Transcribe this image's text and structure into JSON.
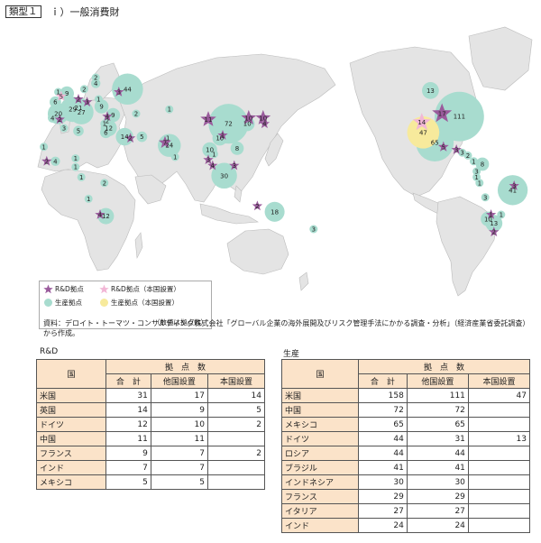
{
  "header": {
    "type_label": "類型１",
    "title": "ｉ）一般消費財"
  },
  "colors": {
    "rd": "#9a5b9c",
    "rd_home": "#f2b6d6",
    "production": "#a8dccf",
    "production_home": "#f7ea9c",
    "land": "#e4e4e4",
    "header_fill": "#fbe3c9"
  },
  "map_markers": [
    {
      "kind": "rd",
      "label": "17",
      "lon": -98,
      "lat": 40
    },
    {
      "kind": "rd_home",
      "label": "14",
      "lon": -112,
      "lat": 34
    },
    {
      "kind": "prod",
      "label": "111",
      "lon": -86,
      "lat": 38
    },
    {
      "kind": "prod_home",
      "label": "47",
      "lon": -111,
      "lat": 27
    },
    {
      "kind": "prod",
      "label": "13",
      "lon": -106,
      "lat": 56
    },
    {
      "kind": "prod",
      "label": "65",
      "lon": -103,
      "lat": 20
    },
    {
      "kind": "rd",
      "label": "5",
      "lon": -97,
      "lat": 17
    },
    {
      "kind": "rd",
      "label": "3",
      "lon": -88,
      "lat": 15
    },
    {
      "kind": "prod",
      "label": "3",
      "lon": -84,
      "lat": 13
    },
    {
      "kind": "prod",
      "label": "2",
      "lon": -80,
      "lat": 11
    },
    {
      "kind": "prod",
      "label": "1",
      "lon": -76,
      "lat": 7
    },
    {
      "kind": "prod",
      "label": "8",
      "lon": -70,
      "lat": 5
    },
    {
      "kind": "prod",
      "label": "3",
      "lon": -74,
      "lat": 0
    },
    {
      "kind": "prod",
      "label": "1",
      "lon": -74,
      "lat": -4
    },
    {
      "kind": "prod",
      "label": "1",
      "lon": -72,
      "lat": -8
    },
    {
      "kind": "prod",
      "label": "3",
      "lon": -68,
      "lat": -18
    },
    {
      "kind": "rd",
      "label": "3",
      "lon": -48,
      "lat": -10
    },
    {
      "kind": "prod",
      "label": "41",
      "lon": -49,
      "lat": -13
    },
    {
      "kind": "rd",
      "label": "1",
      "lon": -64,
      "lat": -30
    },
    {
      "kind": "prod",
      "label": "10",
      "lon": -66,
      "lat": -33
    },
    {
      "kind": "prod",
      "label": "13",
      "lon": -62,
      "lat": -36
    },
    {
      "kind": "prod",
      "label": "1",
      "lon": -57,
      "lat": -30
    },
    {
      "kind": "rd",
      "label": "2",
      "lon": -62,
      "lat": -42
    },
    {
      "kind": "prod",
      "label": "1",
      "lon": -4,
      "lat": 55
    },
    {
      "kind": "rd_home",
      "label": "5",
      "lon": -2,
      "lat": 52
    },
    {
      "kind": "prod",
      "label": "6",
      "lon": -6,
      "lat": 48
    },
    {
      "kind": "prod",
      "label": "9",
      "lon": 2,
      "lat": 54
    },
    {
      "kind": "rd",
      "label": "2",
      "lon": 10,
      "lat": 50
    },
    {
      "kind": "rd",
      "label": "3",
      "lon": 16,
      "lat": 48
    },
    {
      "kind": "prod",
      "label": "2",
      "lon": 14,
      "lat": 57
    },
    {
      "kind": "prod",
      "label": "4",
      "lon": 22,
      "lat": 61
    },
    {
      "kind": "prod",
      "label": "2",
      "lon": 22,
      "lat": 65
    },
    {
      "kind": "prod",
      "label": "44",
      "lon": 44,
      "lat": 57
    },
    {
      "kind": "rd",
      "label": "3",
      "lon": 38,
      "lat": 55
    },
    {
      "kind": "prod",
      "label": "1",
      "lon": 24,
      "lat": 50
    },
    {
      "kind": "prod",
      "label": "9",
      "lon": 26,
      "lat": 45
    },
    {
      "kind": "prod",
      "label": "21",
      "lon": 10,
      "lat": 44
    },
    {
      "kind": "prod",
      "label": "29",
      "lon": 6,
      "lat": 43
    },
    {
      "kind": "prod",
      "label": "20",
      "lon": -4,
      "lat": 40
    },
    {
      "kind": "prod",
      "label": "27",
      "lon": 12,
      "lat": 41
    },
    {
      "kind": "prod",
      "label": "4",
      "lon": -8,
      "lat": 37
    },
    {
      "kind": "rd",
      "label": "2",
      "lon": -3,
      "lat": 36
    },
    {
      "kind": "prod",
      "label": "3",
      "lon": 0,
      "lat": 30
    },
    {
      "kind": "prod",
      "label": "5",
      "lon": 10,
      "lat": 28
    },
    {
      "kind": "prod",
      "label": "1",
      "lon": -14,
      "lat": 17
    },
    {
      "kind": "rd",
      "label": "2",
      "lon": -12,
      "lat": 7
    },
    {
      "kind": "prod",
      "label": "4",
      "lon": -6,
      "lat": 7
    },
    {
      "kind": "prod",
      "label": "1",
      "lon": 8,
      "lat": 9
    },
    {
      "kind": "prod",
      "label": "1",
      "lon": 8,
      "lat": 3
    },
    {
      "kind": "prod",
      "label": "1",
      "lon": 12,
      "lat": -4
    },
    {
      "kind": "prod",
      "label": "2",
      "lon": 28,
      "lat": -8
    },
    {
      "kind": "prod",
      "label": "1",
      "lon": 17,
      "lat": -19
    },
    {
      "kind": "rd",
      "label": "4",
      "lon": 25,
      "lat": -30
    },
    {
      "kind": "prod",
      "label": "12",
      "lon": 29,
      "lat": -31
    },
    {
      "kind": "rd",
      "label": "4",
      "lon": 30,
      "lat": 38
    },
    {
      "kind": "prod",
      "label": "9",
      "lon": 34,
      "lat": 39
    },
    {
      "kind": "prod",
      "label": "2",
      "lon": 30,
      "lat": 35
    },
    {
      "kind": "prod",
      "label": "1",
      "lon": 28,
      "lat": 33
    },
    {
      "kind": "prod",
      "label": "12",
      "lon": 31,
      "lat": 30
    },
    {
      "kind": "prod",
      "label": "6",
      "lon": 29,
      "lat": 27
    },
    {
      "kind": "prod",
      "label": "14",
      "lon": 42,
      "lat": 24
    },
    {
      "kind": "rd",
      "label": "2",
      "lon": 46,
      "lat": 23
    },
    {
      "kind": "prod",
      "label": "5",
      "lon": 54,
      "lat": 24
    },
    {
      "kind": "rd",
      "label": "7",
      "lon": 70,
      "lat": 20
    },
    {
      "kind": "prod",
      "label": "24",
      "lon": 73,
      "lat": 18
    },
    {
      "kind": "prod",
      "label": "1",
      "lon": 72,
      "lat": 23
    },
    {
      "kind": "prod",
      "label": "1",
      "lon": 77,
      "lat": 10
    },
    {
      "kind": "prod",
      "label": "2",
      "lon": 50,
      "lat": 40
    },
    {
      "kind": "prod",
      "label": "1",
      "lon": 73,
      "lat": 43
    },
    {
      "kind": "rd",
      "label": "11",
      "lon": 100,
      "lat": 36
    },
    {
      "kind": "prod",
      "label": "72",
      "lon": 114,
      "lat": 33
    },
    {
      "kind": "rd",
      "label": "1",
      "lon": 110,
      "lat": 25
    },
    {
      "kind": "prod",
      "label": "10",
      "lon": 108,
      "lat": 23
    },
    {
      "kind": "rd",
      "label": "10",
      "lon": 128,
      "lat": 37
    },
    {
      "kind": "prod",
      "label": "10",
      "lon": 127,
      "lat": 33
    },
    {
      "kind": "rd",
      "label": "10",
      "lon": 138,
      "lat": 37
    },
    {
      "kind": "rd",
      "label": "4",
      "lon": 139,
      "lat": 33
    },
    {
      "kind": "prod",
      "label": "10",
      "lon": 101,
      "lat": 15
    },
    {
      "kind": "prod",
      "label": "1",
      "lon": 104,
      "lat": 12
    },
    {
      "kind": "prod",
      "label": "8",
      "lon": 120,
      "lat": 16
    },
    {
      "kind": "rd",
      "label": "4",
      "lon": 103,
      "lat": 4
    },
    {
      "kind": "rd",
      "label": "3",
      "lon": 100,
      "lat": 8
    },
    {
      "kind": "rd",
      "label": "3",
      "lon": 118,
      "lat": 4
    },
    {
      "kind": "prod",
      "label": "30",
      "lon": 111,
      "lat": -3
    },
    {
      "kind": "rd",
      "label": "2",
      "lon": 134,
      "lat": -24
    },
    {
      "kind": "prod",
      "label": "18",
      "lon": 146,
      "lat": -28
    },
    {
      "kind": "prod",
      "label": "3",
      "lon": 173,
      "lat": -40
    }
  ],
  "legend": {
    "items": [
      {
        "kind": "rd",
        "label": "R&D拠点"
      },
      {
        "kind": "rd_home",
        "label": "R&D拠点（本国設置）"
      },
      {
        "kind": "prod",
        "label": "生産拠点"
      },
      {
        "kind": "prod_home",
        "label": "生産拠点（本国設置）"
      }
    ],
    "note": "（数値は拠点数）"
  },
  "source": "資料：デロイト・トーマツ・コンサルティング株式会社「グローバル企業の海外展開及びリスク管理手法にかかる調査・分析」（経済産業省委託調査）から作成。",
  "rd_table": {
    "title": "R&D",
    "head_country": "国",
    "head_group": "拠　点　数",
    "cols": [
      "合　計",
      "他国設置",
      "本国設置"
    ],
    "rows": [
      {
        "country": "米国",
        "total": "31",
        "other": "17",
        "home": "14"
      },
      {
        "country": "英国",
        "total": "14",
        "other": "9",
        "home": "5"
      },
      {
        "country": "ドイツ",
        "total": "12",
        "other": "10",
        "home": "2"
      },
      {
        "country": "中国",
        "total": "11",
        "other": "11",
        "home": ""
      },
      {
        "country": "フランス",
        "total": "9",
        "other": "7",
        "home": "2"
      },
      {
        "country": "インド",
        "total": "7",
        "other": "7",
        "home": ""
      },
      {
        "country": "メキシコ",
        "total": "5",
        "other": "5",
        "home": ""
      }
    ]
  },
  "prod_table": {
    "title": "生産",
    "head_country": "国",
    "head_group": "拠　点　数",
    "cols": [
      "合　計",
      "他国設置",
      "本国設置"
    ],
    "rows": [
      {
        "country": "米国",
        "total": "158",
        "other": "111",
        "home": "47"
      },
      {
        "country": "中国",
        "total": "72",
        "other": "72",
        "home": ""
      },
      {
        "country": "メキシコ",
        "total": "65",
        "other": "65",
        "home": ""
      },
      {
        "country": "ドイツ",
        "total": "44",
        "other": "31",
        "home": "13"
      },
      {
        "country": "ロシア",
        "total": "44",
        "other": "44",
        "home": ""
      },
      {
        "country": "ブラジル",
        "total": "41",
        "other": "41",
        "home": ""
      },
      {
        "country": "インドネシア",
        "total": "30",
        "other": "30",
        "home": ""
      },
      {
        "country": "フランス",
        "total": "29",
        "other": "29",
        "home": ""
      },
      {
        "country": "イタリア",
        "total": "27",
        "other": "27",
        "home": ""
      },
      {
        "country": "インド",
        "total": "24",
        "other": "24",
        "home": ""
      }
    ]
  }
}
